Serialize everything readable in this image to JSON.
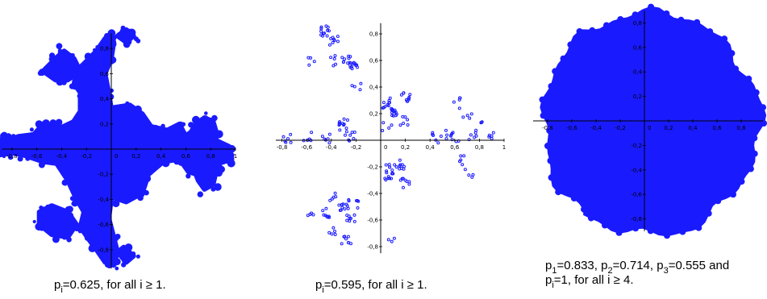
{
  "colors": {
    "fractal": "#1a1aff",
    "axis": "#000000"
  },
  "panels": [
    {
      "id": "p1",
      "x_ticks": [
        "-0,8",
        "-0,6",
        "-0,4",
        "-0,2",
        "0,2",
        "0,4",
        "0,6",
        "0,8",
        "1"
      ],
      "y_ticks": [
        "0,8",
        "0,6",
        "0,4",
        "0,2",
        "-0,2",
        "-0,4",
        "-0,6",
        "-0,8"
      ],
      "origin_label": "0",
      "caption": {
        "p": "p",
        "sub": "i",
        "rest": "=0.625, for all i ≥ 1."
      }
    },
    {
      "id": "p2",
      "x_ticks": [
        "-0,8",
        "-0,6",
        "-0,4",
        "-0,2",
        "0,2",
        "0,4",
        "0,6",
        "0,8",
        "1"
      ],
      "y_ticks": [
        "0,8",
        "0,6",
        "0,4",
        "0,2",
        "-0,2",
        "-0,4",
        "-0,6",
        "-0,8"
      ],
      "origin_label": "0",
      "caption": {
        "p": "p",
        "sub": "i",
        "rest": "=0.595, for all i ≥ 1."
      }
    },
    {
      "id": "p3",
      "x_ticks": [
        "-0,8",
        "-0,6",
        "-0,4",
        "-0,2",
        "0,2",
        "0,4",
        "0,6",
        "0,8"
      ],
      "y_ticks": [
        "0,8",
        "0,6",
        "0,4",
        "0,2",
        "-0,2",
        "-0,4",
        "-0,6",
        "-0,8"
      ],
      "origin_label": "0",
      "caption": {
        "line1": [
          {
            "p": "p",
            "sub": "1",
            "rest": "=0.833, "
          },
          {
            "p": "p",
            "sub": "2",
            "rest": "=0.714, "
          },
          {
            "p": "p",
            "sub": "3",
            "rest": "=0.555 and"
          }
        ],
        "line2": {
          "p": "p",
          "sub": "i",
          "rest": "=1, for all i ≥ 4."
        }
      }
    }
  ]
}
